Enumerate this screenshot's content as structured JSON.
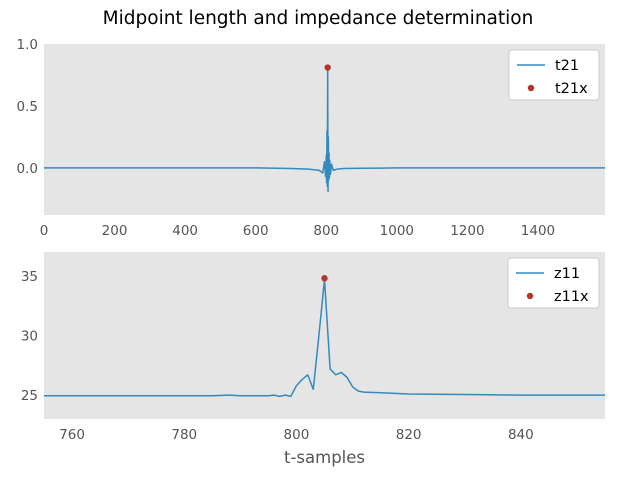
{
  "figure": {
    "suptitle": "Midpoint length and impedance determination"
  },
  "colors": {
    "background": "#E5E5E5",
    "line": "#348ABD",
    "marker": "#B2362A",
    "tick_text": "#555555",
    "legend_frame": "#CCCCCC"
  },
  "chart_data": [
    {
      "type": "line",
      "title": "",
      "xlabel": "",
      "ylabel": "",
      "xlim": [
        0,
        1590
      ],
      "ylim": [
        -0.38,
        1.0
      ],
      "xticks": [
        0,
        200,
        400,
        600,
        800,
        1000,
        1200,
        1400
      ],
      "yticks": [
        0.0,
        0.5,
        1.0
      ],
      "xtick_labels": [
        "0",
        "200",
        "400",
        "600",
        "800",
        "1000",
        "1200",
        "1400"
      ],
      "ytick_labels": [
        "0.0",
        "0.5",
        "1.0"
      ],
      "grid": false,
      "legend_position": "top-right",
      "series": [
        {
          "name": "t21",
          "kind": "line",
          "x": [
            0,
            600,
            700,
            750,
            780,
            790,
            795,
            798,
            800,
            801,
            802,
            803,
            804,
            805,
            806,
            807,
            808,
            809,
            810,
            812,
            815,
            820,
            830,
            850,
            900,
            1000,
            1200,
            1590
          ],
          "y": [
            0.0,
            0.0,
            -0.005,
            -0.01,
            -0.02,
            -0.04,
            0.05,
            -0.07,
            0.1,
            -0.12,
            0.3,
            -0.15,
            0.81,
            -0.19,
            0.25,
            -0.1,
            0.12,
            -0.08,
            0.06,
            -0.05,
            0.03,
            -0.02,
            -0.01,
            -0.005,
            -0.003,
            0.0,
            0.0,
            0.0
          ]
        },
        {
          "name": "t21x",
          "kind": "scatter",
          "x": [
            804
          ],
          "y": [
            0.81
          ]
        }
      ]
    },
    {
      "type": "line",
      "title": "",
      "xlabel": "t-samples",
      "ylabel": "",
      "xlim": [
        755,
        855
      ],
      "ylim": [
        23.0,
        37.0
      ],
      "xticks": [
        760,
        780,
        800,
        820,
        840
      ],
      "yticks": [
        25,
        30,
        35
      ],
      "xtick_labels": [
        "760",
        "780",
        "800",
        "820",
        "840"
      ],
      "ytick_labels": [
        "25",
        "30",
        "35"
      ],
      "grid": false,
      "legend_position": "top-right",
      "series": [
        {
          "name": "z11",
          "kind": "line",
          "x": [
            755,
            760,
            765,
            770,
            775,
            780,
            785,
            788,
            790,
            792,
            794,
            795,
            796,
            797,
            798,
            799,
            800,
            801,
            802,
            803,
            804,
            805,
            806,
            807,
            808,
            809,
            810,
            811,
            812,
            815,
            820,
            830,
            840,
            855
          ],
          "y": [
            24.95,
            24.95,
            24.95,
            24.95,
            24.95,
            24.95,
            24.95,
            25.0,
            24.95,
            24.95,
            24.95,
            24.95,
            25.0,
            24.9,
            25.0,
            24.9,
            25.8,
            26.3,
            26.7,
            25.5,
            30.0,
            34.7,
            27.2,
            26.7,
            26.9,
            26.5,
            25.7,
            25.35,
            25.25,
            25.2,
            25.1,
            25.05,
            25.0,
            25.0
          ]
        },
        {
          "name": "z11x",
          "kind": "scatter",
          "x": [
            805
          ],
          "y": [
            34.8
          ]
        }
      ]
    }
  ]
}
